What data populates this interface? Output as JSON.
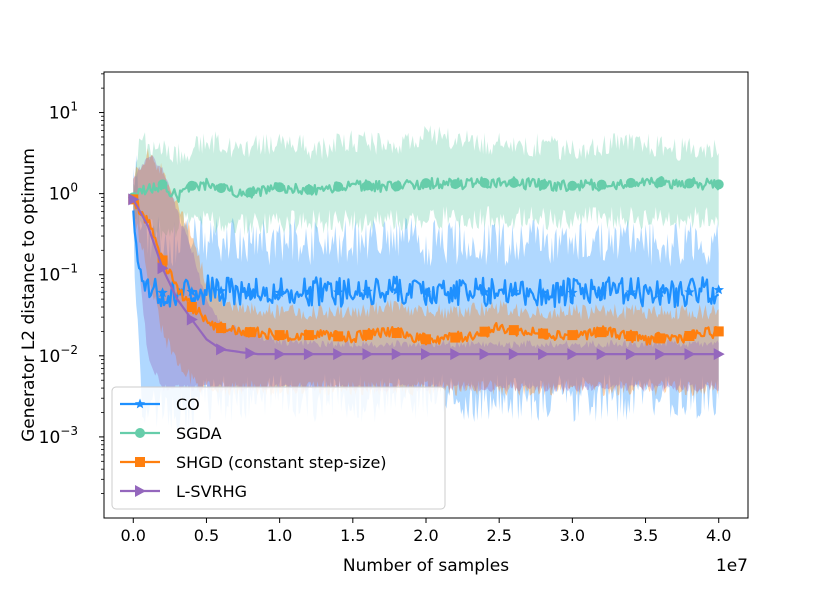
{
  "chart_data": {
    "type": "line",
    "title": "",
    "xlabel": "Number of samples",
    "ylabel": "Generator L2 distance to optimum",
    "x_offset_label": "1e7",
    "xlim": [
      -0.2,
      4.2
    ],
    "ylim_log10": [
      -4.0,
      1.5
    ],
    "y_scale": "log",
    "x_ticks": [
      0.0,
      0.5,
      1.0,
      1.5,
      2.0,
      2.5,
      3.0,
      3.5,
      4.0
    ],
    "x_tick_labels": [
      "0.0",
      "0.5",
      "1.0",
      "1.5",
      "2.0",
      "2.5",
      "3.0",
      "3.5",
      "4.0"
    ],
    "y_ticks_log10": [
      -3,
      -2,
      -1,
      0,
      1
    ],
    "y_tick_labels": [
      {
        "base": "10",
        "exp": "−3"
      },
      {
        "base": "10",
        "exp": "−2"
      },
      {
        "base": "10",
        "exp": "−1"
      },
      {
        "base": "10",
        "exp": "0"
      },
      {
        "base": "10",
        "exp": "1"
      }
    ],
    "legend_position": "lower-left",
    "series": [
      {
        "name": "CO",
        "color": "#1e90ff",
        "marker": "star",
        "x": [
          0.0,
          0.02,
          0.05,
          0.1,
          0.2,
          0.35,
          0.5,
          0.75,
          1.0,
          1.25,
          1.5,
          1.75,
          2.0,
          2.25,
          2.5,
          2.75,
          3.0,
          3.25,
          3.5,
          3.75,
          4.0
        ],
        "values": [
          0.85,
          0.3,
          0.08,
          0.06,
          0.06,
          0.06,
          0.065,
          0.06,
          0.06,
          0.062,
          0.06,
          0.065,
          0.06,
          0.06,
          0.062,
          0.06,
          0.06,
          0.062,
          0.06,
          0.06,
          0.065
        ],
        "band_lower": [
          0.6,
          0.05,
          0.003,
          0.002,
          0.002,
          0.002,
          0.003,
          0.003,
          0.003,
          0.003,
          0.003,
          0.003,
          0.003,
          0.003,
          0.003,
          0.003,
          0.003,
          0.003,
          0.003,
          0.003,
          0.003
        ],
        "band_upper": [
          1.5,
          1.8,
          0.5,
          0.3,
          0.25,
          0.25,
          0.28,
          0.25,
          0.25,
          0.26,
          0.25,
          0.27,
          0.25,
          0.26,
          0.25,
          0.26,
          0.25,
          0.26,
          0.25,
          0.25,
          0.26
        ],
        "noise_amp": 0.18,
        "band_noise_amp": 0.3
      },
      {
        "name": "SGDA",
        "color": "#66cdaa",
        "marker": "circle",
        "x": [
          0.0,
          0.05,
          0.1,
          0.2,
          0.3,
          0.4,
          0.5,
          0.75,
          1.0,
          1.25,
          1.5,
          1.75,
          2.0,
          2.25,
          2.5,
          2.75,
          3.0,
          3.25,
          3.5,
          3.75,
          4.0
        ],
        "values": [
          0.9,
          1.2,
          1.1,
          1.3,
          0.9,
          1.25,
          1.3,
          1.0,
          1.2,
          1.1,
          1.3,
          1.2,
          1.35,
          1.3,
          1.4,
          1.3,
          1.25,
          1.3,
          1.4,
          1.35,
          1.3
        ],
        "band_lower": [
          0.6,
          0.5,
          0.4,
          0.35,
          0.4,
          0.45,
          0.45,
          0.4,
          0.45,
          0.45,
          0.45,
          0.45,
          0.5,
          0.5,
          0.5,
          0.5,
          0.5,
          0.5,
          0.5,
          0.5,
          0.5
        ],
        "band_upper": [
          1.2,
          5.0,
          4.0,
          3.5,
          3.0,
          3.5,
          4.5,
          3.5,
          4.5,
          3.5,
          4.5,
          4.0,
          5.0,
          4.5,
          4.0,
          4.0,
          3.5,
          4.0,
          4.0,
          3.5,
          3.5
        ],
        "noise_amp": 0.07,
        "band_noise_amp": 0.15
      },
      {
        "name": "SHGD (constant step-size)",
        "color": "#ff7f0e",
        "marker": "square",
        "x": [
          0.0,
          0.1,
          0.2,
          0.3,
          0.4,
          0.5,
          0.6,
          0.75,
          1.0,
          1.25,
          1.5,
          1.75,
          2.0,
          2.25,
          2.5,
          2.75,
          3.0,
          3.25,
          3.5,
          3.75,
          4.0
        ],
        "values": [
          0.85,
          0.45,
          0.15,
          0.07,
          0.04,
          0.028,
          0.022,
          0.02,
          0.018,
          0.018,
          0.017,
          0.02,
          0.016,
          0.017,
          0.022,
          0.019,
          0.018,
          0.02,
          0.016,
          0.017,
          0.02
        ],
        "band_lower": [
          0.6,
          0.1,
          0.02,
          0.008,
          0.005,
          0.004,
          0.004,
          0.004,
          0.004,
          0.004,
          0.004,
          0.004,
          0.004,
          0.004,
          0.004,
          0.004,
          0.004,
          0.004,
          0.004,
          0.004,
          0.004
        ],
        "band_upper": [
          1.5,
          3.0,
          2.0,
          0.8,
          0.3,
          0.08,
          0.05,
          0.04,
          0.035,
          0.035,
          0.035,
          0.04,
          0.035,
          0.035,
          0.04,
          0.035,
          0.035,
          0.035,
          0.035,
          0.035,
          0.035
        ],
        "noise_amp": 0.07,
        "band_noise_amp": 0.1
      },
      {
        "name": "L-SVRHG",
        "color": "#9467bd",
        "marker": "triangle-right",
        "x": [
          0.0,
          0.1,
          0.2,
          0.3,
          0.4,
          0.5,
          0.6,
          0.75,
          0.85,
          1.0,
          1.25,
          1.5,
          1.75,
          2.0,
          2.25,
          2.5,
          2.75,
          3.0,
          3.25,
          3.5,
          3.75,
          4.0
        ],
        "values": [
          0.85,
          0.4,
          0.12,
          0.05,
          0.028,
          0.016,
          0.012,
          0.011,
          0.0105,
          0.0105,
          0.0105,
          0.0105,
          0.0105,
          0.0105,
          0.0105,
          0.0105,
          0.0105,
          0.0105,
          0.0105,
          0.0105,
          0.0105,
          0.0105
        ],
        "band_lower": [
          0.6,
          0.01,
          0.004,
          0.004,
          0.004,
          0.004,
          0.004,
          0.004,
          0.004,
          0.004,
          0.004,
          0.004,
          0.004,
          0.004,
          0.004,
          0.004,
          0.004,
          0.004,
          0.004,
          0.004,
          0.004,
          0.004
        ],
        "band_upper": [
          1.5,
          3.0,
          2.0,
          0.6,
          0.2,
          0.05,
          0.025,
          0.02,
          0.018,
          0.015,
          0.014,
          0.014,
          0.014,
          0.014,
          0.014,
          0.014,
          0.014,
          0.014,
          0.014,
          0.014,
          0.014,
          0.014
        ],
        "noise_amp": 0.0,
        "band_noise_amp": 0.05
      }
    ]
  }
}
